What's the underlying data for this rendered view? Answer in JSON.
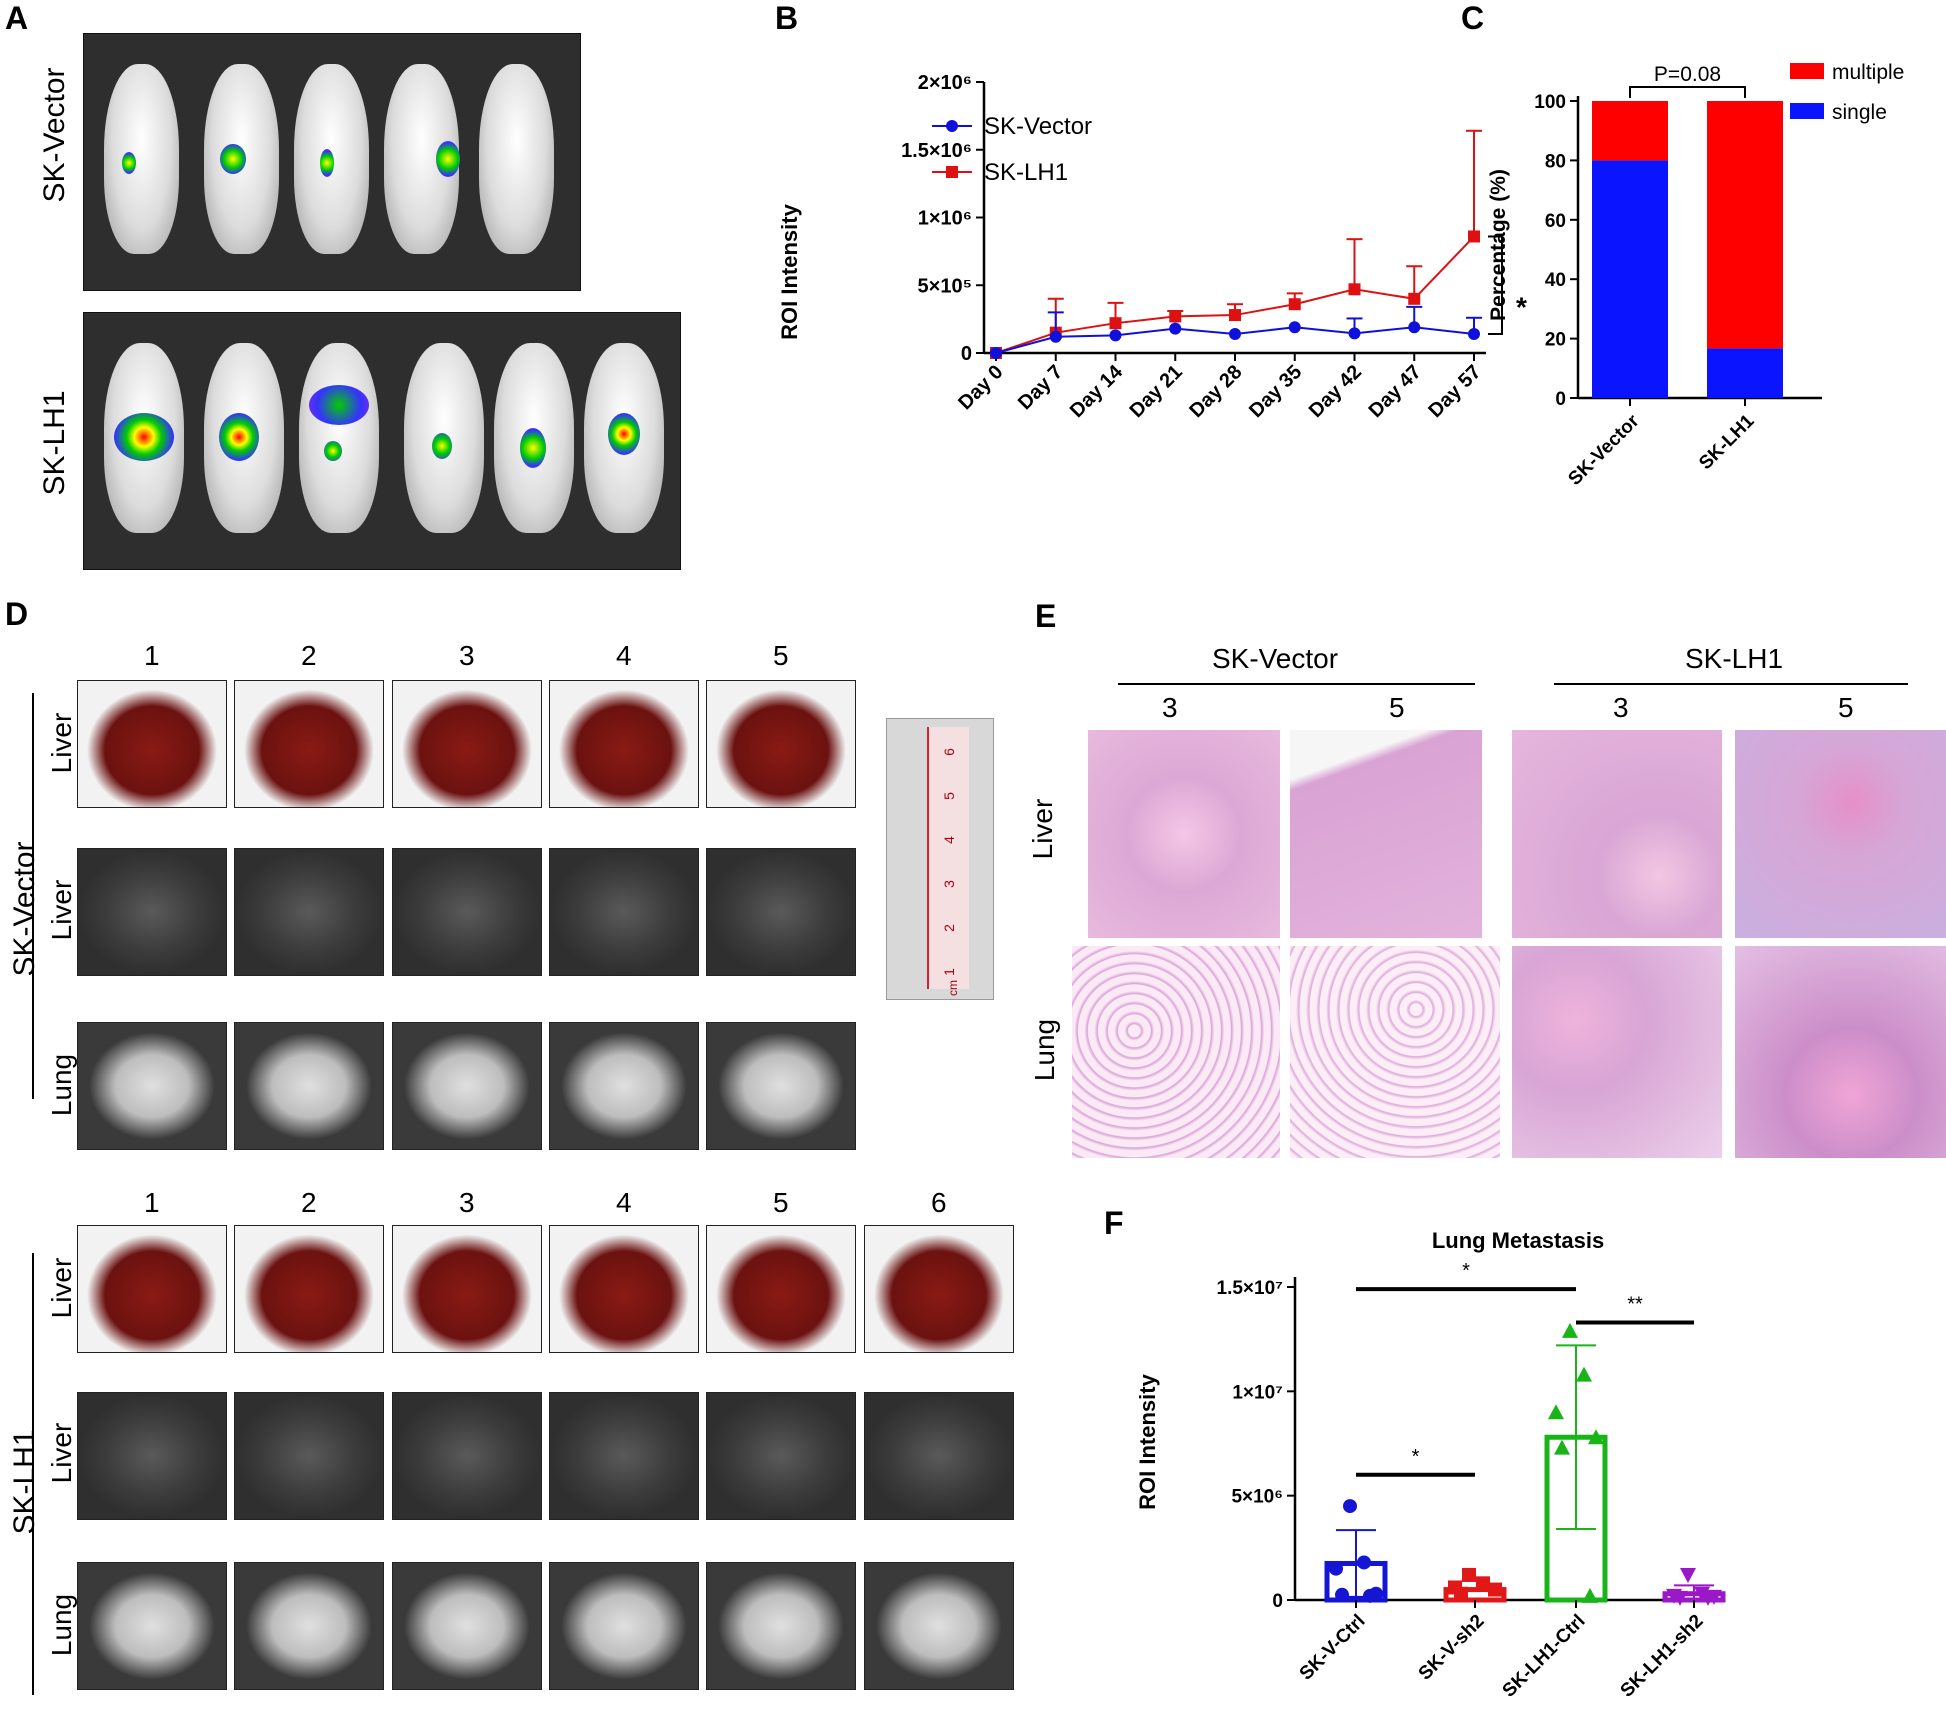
{
  "panels": {
    "a": "A",
    "b": "B",
    "c": "C",
    "d": "D",
    "e": "E",
    "f": "F"
  },
  "panel_a": {
    "groups": [
      "SK-Vector",
      "SK-LH1"
    ],
    "mice_counts": [
      5,
      6
    ]
  },
  "panel_d": {
    "groups": [
      "SK-Vector",
      "SK-LH1"
    ],
    "vector_columns": [
      "1",
      "2",
      "3",
      "4",
      "5"
    ],
    "lh1_columns": [
      "1",
      "2",
      "3",
      "4",
      "5",
      "6"
    ],
    "row_labels": [
      "Liver",
      "Liver",
      "Lung"
    ],
    "ruler_ticks": [
      "1",
      "2",
      "3",
      "4",
      "5",
      "6"
    ],
    "ruler_unit": "cm"
  },
  "panel_e": {
    "groups": [
      "SK-Vector",
      "SK-LH1"
    ],
    "columns": [
      "3",
      "5",
      "3",
      "5"
    ],
    "row_labels": [
      "Liver",
      "Lung"
    ]
  },
  "colors": {
    "vector": "#1010dd",
    "lh1": "#dd1111",
    "multiple": "#ff0000",
    "single": "#0a14ff",
    "ctrl_v": "#1515d4",
    "sh2_v": "#e01818",
    "ctrl_lh1": "#18b418",
    "sh2_lh1": "#9b18c8"
  },
  "chart_data": [
    {
      "id": "B",
      "type": "line",
      "title": "",
      "ylabel": "ROI Intensity",
      "xlabel": "",
      "categories": [
        "Day 0",
        "Day 7",
        "Day 14",
        "Day 21",
        "Day 28",
        "Day 35",
        "Day 42",
        "Day 47",
        "Day 57"
      ],
      "ylim": [
        0,
        2000000
      ],
      "yticks": [
        "0",
        "5×10⁵",
        "1×10⁶",
        "1.5×10⁶",
        "2×10⁶"
      ],
      "legend_position": "top-left",
      "series": [
        {
          "name": "SK-Vector",
          "marker": "circle",
          "values": [
            0,
            120000,
            130000,
            180000,
            140000,
            190000,
            145000,
            190000,
            140000
          ],
          "error": [
            0,
            180000,
            0,
            0,
            0,
            0,
            110000,
            150000,
            120000
          ]
        },
        {
          "name": "SK-LH1",
          "marker": "square",
          "values": [
            0,
            150000,
            220000,
            270000,
            280000,
            360000,
            470000,
            400000,
            860000
          ],
          "error": [
            0,
            250000,
            150000,
            40000,
            80000,
            80000,
            370000,
            240000,
            780000
          ]
        }
      ],
      "significance": "*"
    },
    {
      "id": "C",
      "type": "bar",
      "stacked": true,
      "ylabel": "Percentage (%)",
      "categories": [
        "SK-Vector",
        "SK-LH1"
      ],
      "ylim": [
        0,
        100
      ],
      "yticks": [
        "0",
        "20",
        "40",
        "60",
        "80",
        "100"
      ],
      "legend_position": "top-right",
      "series": [
        {
          "name": "single",
          "values": [
            80,
            16.7
          ]
        },
        {
          "name": "multiple",
          "values": [
            20,
            83.3
          ]
        }
      ],
      "annotation": "P=0.08"
    },
    {
      "id": "F",
      "type": "bar",
      "title": "Lung Metastasis",
      "ylabel": "ROI Intensity",
      "categories": [
        "SK-V-Ctrl",
        "SK-V-sh2",
        "SK-LH1-Ctrl",
        "SK-LH1-sh2"
      ],
      "ylim": [
        0,
        15000000
      ],
      "yticks": [
        "0",
        "5×10⁶",
        "1×10⁷",
        "1.5×10⁷"
      ],
      "values": [
        1750000,
        500000,
        7800000,
        300000
      ],
      "sd": [
        1600000,
        0,
        4400000,
        400000
      ],
      "points": [
        [
          4500000,
          1800000,
          1500000,
          300000,
          250000,
          200000
        ],
        [
          1200000,
          800000,
          600000,
          500000,
          300000
        ],
        [
          12900000,
          10800000,
          9000000,
          7800000,
          7300000,
          200000
        ],
        [
          1200000,
          300000,
          200000,
          150000,
          100000,
          100000
        ]
      ],
      "point_markers": [
        "circle",
        "square",
        "triangle-up",
        "triangle-down"
      ],
      "significance": [
        {
          "pair": [
            0,
            1
          ],
          "label": "*"
        },
        {
          "pair": [
            0,
            2
          ],
          "label": "*"
        },
        {
          "pair": [
            2,
            3
          ],
          "label": "**"
        }
      ]
    }
  ]
}
